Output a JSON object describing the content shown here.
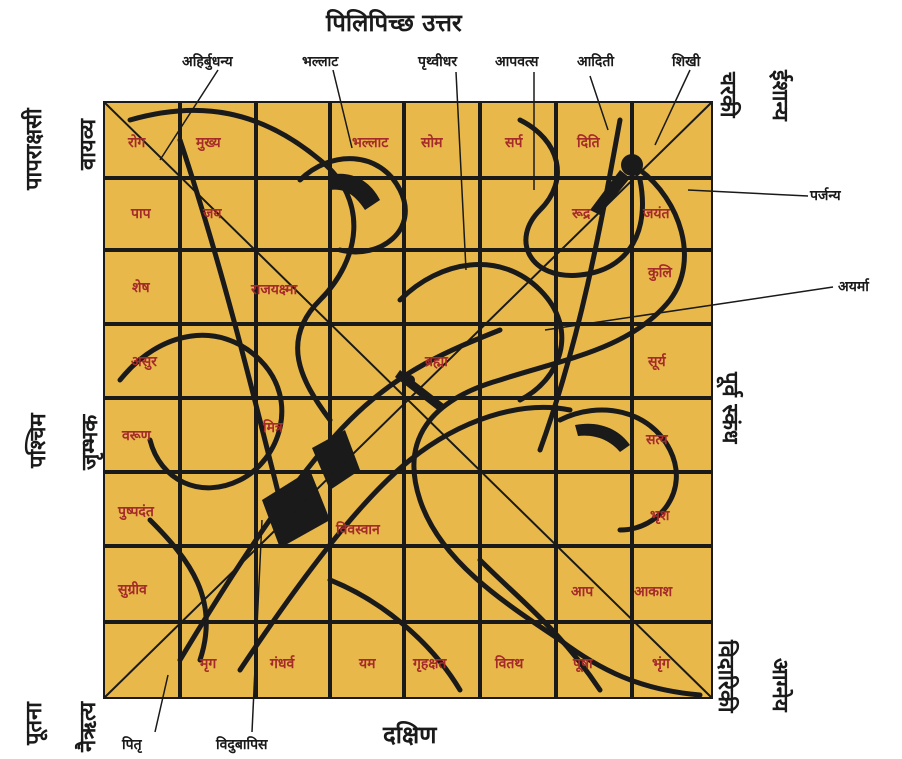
{
  "colors": {
    "paper": "#e8b84a",
    "ink": "#1a1a1a",
    "deity": "#a52a2a"
  },
  "directions": {
    "north": "पिलिपिच्छ उत्तर",
    "south": "दक्षिण",
    "west": "पश्चिम",
    "east": "पूर्व स्कंध",
    "northwest": "वायव्य",
    "northwest_demon": "पापराक्षसी",
    "northeast": "ईशान्य",
    "northeast_demon": "चरकी",
    "southwest": "नैऋत्य",
    "southwest_demon": "पूतना",
    "southeast": "आग्नेय",
    "southeast_demon": "विदारिकी",
    "west_inner": "जृम्भक"
  },
  "callouts": {
    "ahirbudhnya": "अहिर्बुधन्य",
    "bhallat": "भल्लाट",
    "prithvidhar": "पृथ्वीधर",
    "apavats": "आपवत्स",
    "aditi": "आदिती",
    "shikhi": "शिखी",
    "parjanya": "पर्जन्य",
    "aryama": "अयर्मा",
    "pitru": "पितृ",
    "vidubapis": "विदुबापिस"
  },
  "cells": {
    "rog": "रोग",
    "mukhya": "मुख्य",
    "bhallat_cell": "भल्लाट",
    "som": "सोम",
    "sarp": "सर्प",
    "diti": "दिति",
    "paap": "पाप",
    "jay": "जय",
    "rudra": "रूद्र",
    "jayant": "जयंत",
    "shesh": "शेष",
    "rajyakshma": "राजयक्ष्मा",
    "kulish": "कुलि",
    "asur": "असुर",
    "brahma": "ब्रह्मा",
    "surya": "सूर्य",
    "varun": "वरूण",
    "mitra": "मित्र",
    "satya": "सत्य",
    "pushpadant": "पुष्पदंत",
    "vivasvan": "विवस्वान",
    "bhrish": "भृश",
    "sugreev": "सुग्रीव",
    "aap": "आप",
    "akash": "आकाश",
    "mrig": "मृग",
    "gandharva": "गंधर्व",
    "yam": "यम",
    "grihakshat": "गृहक्षत",
    "vitath": "वितथ",
    "pusha": "पूषा",
    "bhringa": "भृंग"
  }
}
